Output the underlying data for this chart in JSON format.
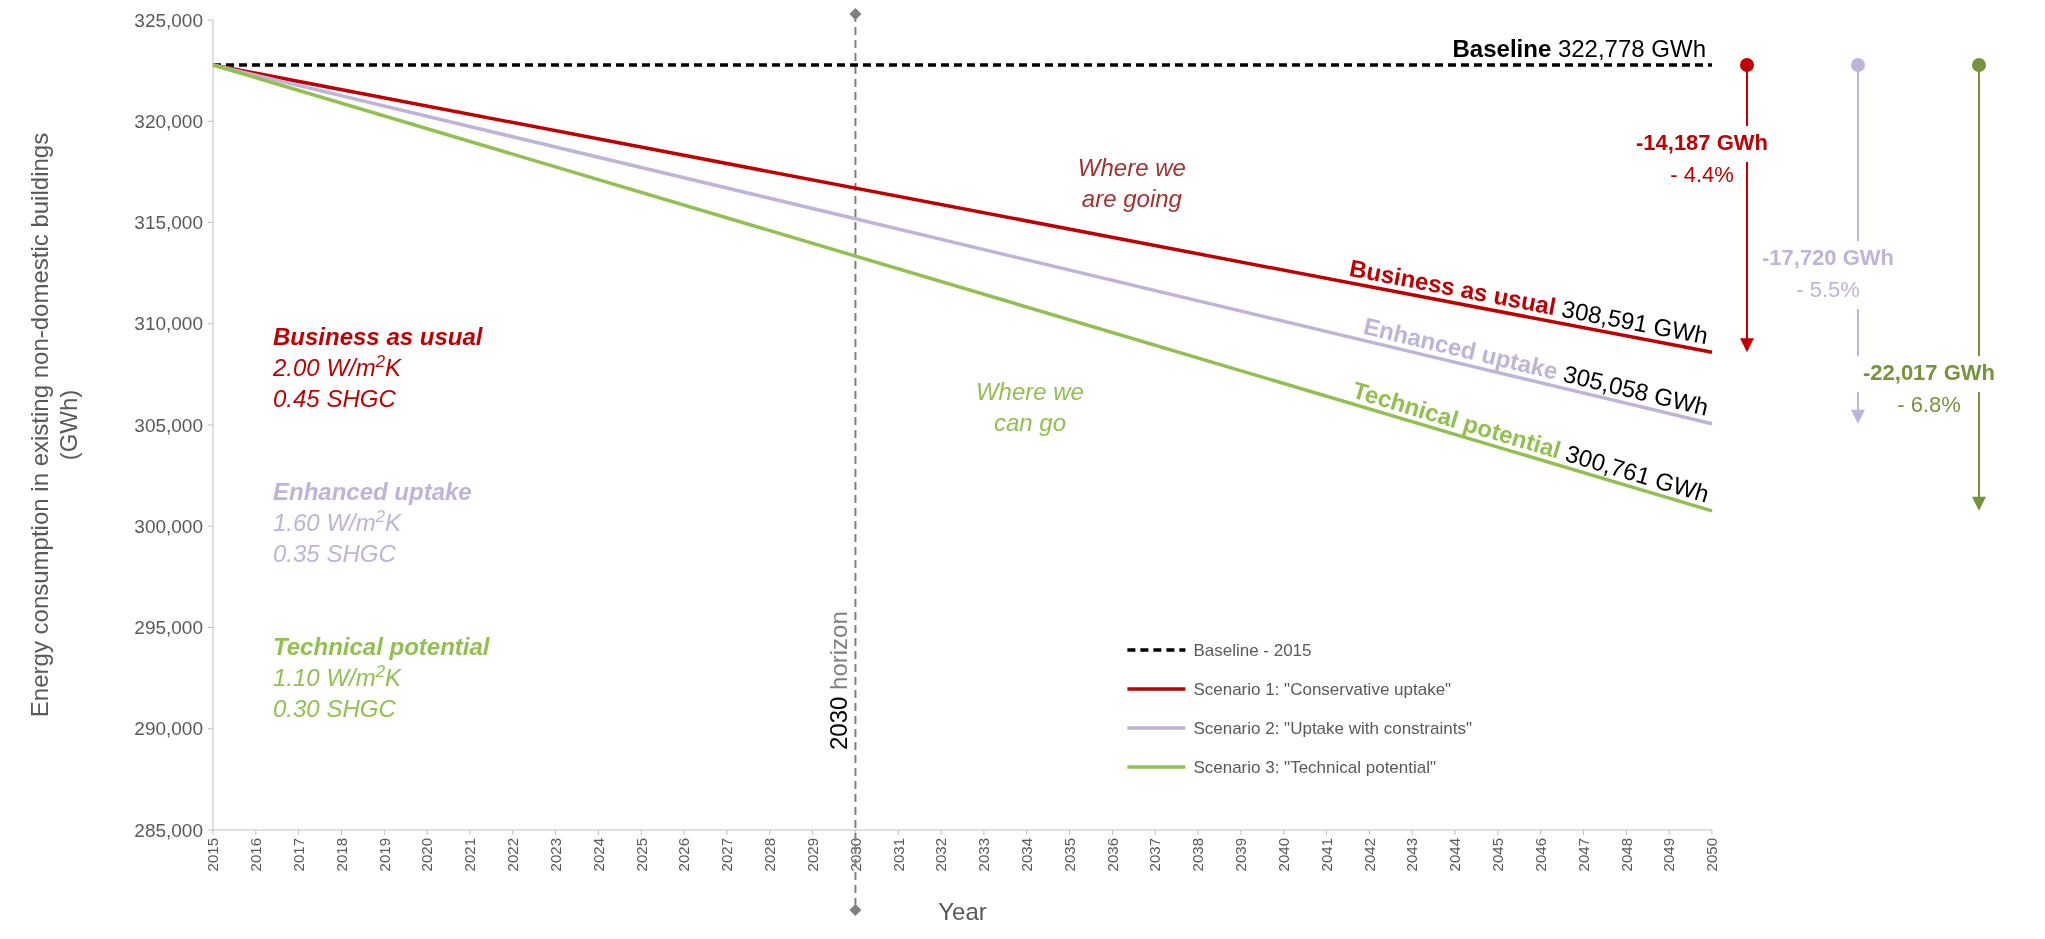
{
  "chart_data": {
    "type": "line",
    "xlabel": "Year",
    "ylabel": "Energy consumption in existing non-domestic buildings\n(GWh)",
    "xlim": [
      2015,
      2050
    ],
    "xticks": [
      2015,
      2016,
      2017,
      2018,
      2019,
      2020,
      2021,
      2022,
      2023,
      2024,
      2025,
      2026,
      2027,
      2028,
      2029,
      2030,
      2031,
      2032,
      2033,
      2034,
      2035,
      2036,
      2037,
      2038,
      2039,
      2040,
      2041,
      2042,
      2043,
      2044,
      2045,
      2046,
      2047,
      2048,
      2049,
      2050
    ],
    "ylim": [
      285000,
      325000
    ],
    "yticks": [
      {
        "value": 285000,
        "label": "285,000"
      },
      {
        "value": 290000,
        "label": "290,000"
      },
      {
        "value": 295000,
        "label": "295,000"
      },
      {
        "value": 300000,
        "label": "300,000"
      },
      {
        "value": 305000,
        "label": "305,000"
      },
      {
        "value": 310000,
        "label": "310,000"
      },
      {
        "value": 315000,
        "label": "315,000"
      },
      {
        "value": 320000,
        "label": "320,000"
      },
      {
        "value": 325000,
        "label": "325,000"
      }
    ],
    "x": [
      2015,
      2050
    ],
    "series": [
      {
        "name": "Baseline - 2015",
        "color": "#000000",
        "line_style": "dashed",
        "values": [
          322778,
          322778
        ]
      },
      {
        "name": "Scenario 1: \"Conservative uptake\"",
        "color": "#c00000",
        "values": [
          322778,
          308591
        ]
      },
      {
        "name": "Scenario 2: \"Uptake with constraints\"",
        "color": "#bfb3d9",
        "values": [
          322778,
          305058
        ]
      },
      {
        "name": "Scenario 3: \"Technical potential\"",
        "color": "#92c050",
        "values": [
          322778,
          300761
        ]
      }
    ],
    "ref_lines": [
      {
        "axis": "x",
        "value": 2030,
        "label": "2030 horizon",
        "color": "#808080",
        "line_style": "dashed"
      }
    ],
    "legend": "bottom right",
    "grid": false,
    "annotations": [
      "Baseline",
      "322,778 GWh",
      "Where we\nare going",
      "Business as usual",
      "308,591 GWh",
      "Enhanced uptake",
      "305,058 GWh",
      "Technical potential",
      "300,761 GWh",
      "Where we\ncan go",
      "Business as usual",
      "2.00 W/m$^{2}$K",
      "0.45 SHGC",
      "Enhanced uptake",
      "1.60 W/m$^{2}$K",
      "0.35 SHGC",
      "Technical potential",
      "1.10 W/m$^{2}$K",
      "0.30 SHGC",
      "-14,187 GWh",
      "- 4.4%",
      "-17,720 GWh",
      "- 5.5%",
      "-22,017 GWh",
      "- 6.8%"
    ]
  }
}
